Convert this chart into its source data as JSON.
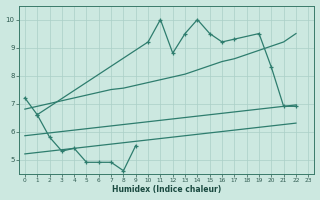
{
  "color": "#2e7d6e",
  "bg_color": "#cce8e0",
  "grid_color": "#aacfc7",
  "xlabel": "Humidex (Indice chaleur)",
  "ylim": [
    4.5,
    10.5
  ],
  "xlim": [
    -0.5,
    23.5
  ],
  "yticks": [
    5,
    6,
    7,
    8,
    9,
    10
  ],
  "xticks": [
    0,
    1,
    2,
    3,
    4,
    5,
    6,
    7,
    8,
    9,
    10,
    11,
    12,
    13,
    14,
    15,
    16,
    17,
    18,
    19,
    20,
    21,
    22,
    23
  ],
  "line1_x": [
    0,
    1,
    10,
    11,
    12,
    13,
    14,
    15,
    16,
    17,
    19,
    20,
    21,
    22
  ],
  "line1_y": [
    7.2,
    6.6,
    9.2,
    10.0,
    8.8,
    9.5,
    10.0,
    9.5,
    9.2,
    9.3,
    9.5,
    8.3,
    6.9,
    6.9
  ],
  "line2_x": [
    0,
    1,
    2,
    3,
    4,
    5,
    6,
    7,
    8,
    9,
    10,
    11,
    12,
    13,
    14,
    15,
    16,
    17,
    18,
    19,
    20,
    21,
    22
  ],
  "line2_y": [
    6.8,
    6.9,
    7.0,
    7.1,
    7.2,
    7.3,
    7.4,
    7.5,
    7.55,
    7.65,
    7.75,
    7.85,
    7.95,
    8.05,
    8.2,
    8.35,
    8.5,
    8.6,
    8.75,
    8.9,
    9.05,
    9.2,
    9.5
  ],
  "line3_x": [
    0,
    1,
    2,
    3,
    4,
    5,
    6,
    7,
    8,
    9,
    10,
    11,
    12,
    13,
    14,
    15,
    16,
    17,
    18,
    19,
    20,
    21,
    22
  ],
  "line3_y": [
    5.85,
    5.9,
    5.95,
    6.0,
    6.05,
    6.1,
    6.15,
    6.2,
    6.25,
    6.3,
    6.35,
    6.4,
    6.45,
    6.5,
    6.55,
    6.6,
    6.65,
    6.7,
    6.75,
    6.8,
    6.85,
    6.9,
    6.95
  ],
  "line4_x": [
    1,
    2,
    3,
    4,
    5,
    6,
    7,
    8,
    9
  ],
  "line4_y": [
    6.6,
    5.8,
    5.3,
    5.4,
    4.9,
    4.9,
    4.9,
    4.6,
    5.5
  ],
  "line5_x": [
    0,
    1,
    2,
    3,
    4,
    5,
    6,
    7,
    8,
    9,
    10,
    11,
    12,
    13,
    14,
    15,
    16,
    17,
    18,
    19,
    20,
    21,
    22
  ],
  "line5_y": [
    5.2,
    5.25,
    5.3,
    5.35,
    5.4,
    5.45,
    5.5,
    5.55,
    5.6,
    5.65,
    5.7,
    5.75,
    5.8,
    5.85,
    5.9,
    5.95,
    6.0,
    6.05,
    6.1,
    6.15,
    6.2,
    6.25,
    6.3
  ]
}
